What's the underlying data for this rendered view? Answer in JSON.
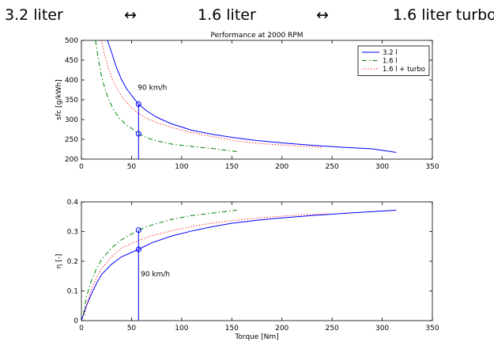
{
  "header": {
    "engine_a": "3.2 liter",
    "arrow_1": "↔",
    "engine_b": "1.6 liter",
    "arrow_2": "↔",
    "engine_c": "1.6 liter turbo"
  },
  "chart_data": [
    {
      "type": "line",
      "title": "Performance at 2000 RPM",
      "xlabel": "",
      "ylabel": "sfc [g/kWh]",
      "xlim": [
        0,
        350
      ],
      "ylim": [
        200,
        500
      ],
      "xticks": [
        0,
        50,
        100,
        150,
        200,
        250,
        300,
        350
      ],
      "yticks": [
        200,
        250,
        300,
        350,
        400,
        450,
        500
      ],
      "grid": false,
      "legend_position": "top-right",
      "series": [
        {
          "name": "3.2 l",
          "color": "#0000ff",
          "style": "solid",
          "x": [
            26,
            30,
            35,
            40,
            45,
            50,
            57,
            65,
            75,
            90,
            110,
            130,
            150,
            175,
            200,
            230,
            260,
            290,
            314
          ],
          "y": [
            500,
            470,
            431,
            401,
            378,
            361,
            339,
            322,
            306,
            289,
            273,
            263,
            255,
            247,
            241,
            235,
            230,
            226,
            217
          ]
        },
        {
          "name": "1.6 l",
          "color": "#008000",
          "style": "dashdot",
          "x": [
            14,
            17,
            20,
            24,
            28,
            33,
            38,
            45,
            50,
            57,
            65,
            75,
            90,
            110,
            130,
            155
          ],
          "y": [
            500,
            451,
            410,
            373,
            346,
            321,
            303,
            286,
            278,
            264,
            254,
            246,
            238,
            232,
            227,
            219
          ]
        },
        {
          "name": "1.6 l + turbo",
          "color": "#ff0000",
          "style": "dotted",
          "x": [
            20,
            23,
            27,
            31,
            36,
            42,
            50,
            57,
            65,
            75,
            90,
            110,
            130,
            155,
            180,
            210,
            240
          ],
          "y": [
            500,
            465,
            429,
            401,
            375,
            352,
            330,
            315,
            303,
            292,
            280,
            267,
            257,
            246,
            239,
            234,
            230
          ]
        }
      ],
      "annotations": [
        {
          "text": "90 km/h",
          "x": 57,
          "y": 375
        }
      ],
      "markers": [
        {
          "x": 57,
          "y": 339
        },
        {
          "x": 57,
          "y": 264
        }
      ],
      "vline": {
        "x": 57,
        "y_from": 200,
        "y_to": 339
      }
    },
    {
      "type": "line",
      "title": "",
      "xlabel": "Torque [Nm]",
      "ylabel": "η [-]",
      "xlim": [
        0,
        350
      ],
      "ylim": [
        0,
        0.4
      ],
      "xticks": [
        0,
        50,
        100,
        150,
        200,
        250,
        300,
        350
      ],
      "yticks": [
        0,
        0.1,
        0.2,
        0.3,
        0.4
      ],
      "grid": false,
      "series": [
        {
          "name": "3.2 l",
          "color": "#0000ff",
          "style": "solid",
          "x": [
            0,
            5,
            10,
            15,
            20,
            30,
            40,
            57,
            70,
            90,
            110,
            130,
            150,
            175,
            200,
            230,
            260,
            290,
            314
          ],
          "y": [
            0,
            0.05,
            0.09,
            0.125,
            0.155,
            0.19,
            0.215,
            0.24,
            0.262,
            0.285,
            0.302,
            0.316,
            0.328,
            0.338,
            0.346,
            0.354,
            0.361,
            0.367,
            0.372
          ]
        },
        {
          "name": "1.6 l",
          "color": "#008000",
          "style": "dashdot",
          "x": [
            2,
            5,
            10,
            15,
            20,
            30,
            40,
            57,
            70,
            90,
            110,
            130,
            155
          ],
          "y": [
            0.02,
            0.08,
            0.135,
            0.175,
            0.205,
            0.245,
            0.272,
            0.305,
            0.322,
            0.341,
            0.354,
            0.362,
            0.372
          ]
        },
        {
          "name": "1.6 l + turbo",
          "color": "#ff0000",
          "style": "dotted",
          "x": [
            3,
            6,
            10,
            15,
            20,
            30,
            40,
            57,
            70,
            90,
            110,
            130,
            150,
            175,
            200,
            225,
            245
          ],
          "y": [
            0.02,
            0.06,
            0.105,
            0.145,
            0.175,
            0.215,
            0.245,
            0.27,
            0.286,
            0.303,
            0.317,
            0.328,
            0.337,
            0.345,
            0.352,
            0.357,
            0.36
          ]
        }
      ],
      "annotations": [
        {
          "text": "90 km/h",
          "x": 60,
          "y": 0.15
        }
      ],
      "markers": [
        {
          "x": 57,
          "y": 0.305
        },
        {
          "x": 57,
          "y": 0.24
        }
      ],
      "vline": {
        "x": 57,
        "y_from": 0,
        "y_to": 0.305
      }
    }
  ]
}
